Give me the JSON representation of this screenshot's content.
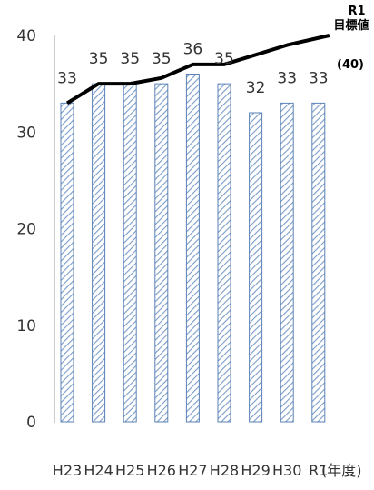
{
  "chart_data": {
    "type": "bar",
    "categories": [
      "H23",
      "H24",
      "H25",
      "H26",
      "H27",
      "H28",
      "H29",
      "H30",
      "R1"
    ],
    "values": [
      33,
      35,
      35,
      35,
      36,
      35,
      32,
      33,
      33
    ],
    "x_unit": "(年度)",
    "ylim": [
      0,
      40
    ],
    "yticks": [
      0,
      10,
      20,
      30,
      40
    ],
    "grid": false,
    "bar_color": "#a9c4e6",
    "bar_edge_color": "#5b82b5",
    "line_color": "#000000",
    "line": [
      33,
      35,
      35,
      35.6,
      37,
      37,
      38,
      39,
      40
    ],
    "target": {
      "line1": "R1",
      "line2": "目標値",
      "line3": "(40)",
      "value": 40
    }
  }
}
